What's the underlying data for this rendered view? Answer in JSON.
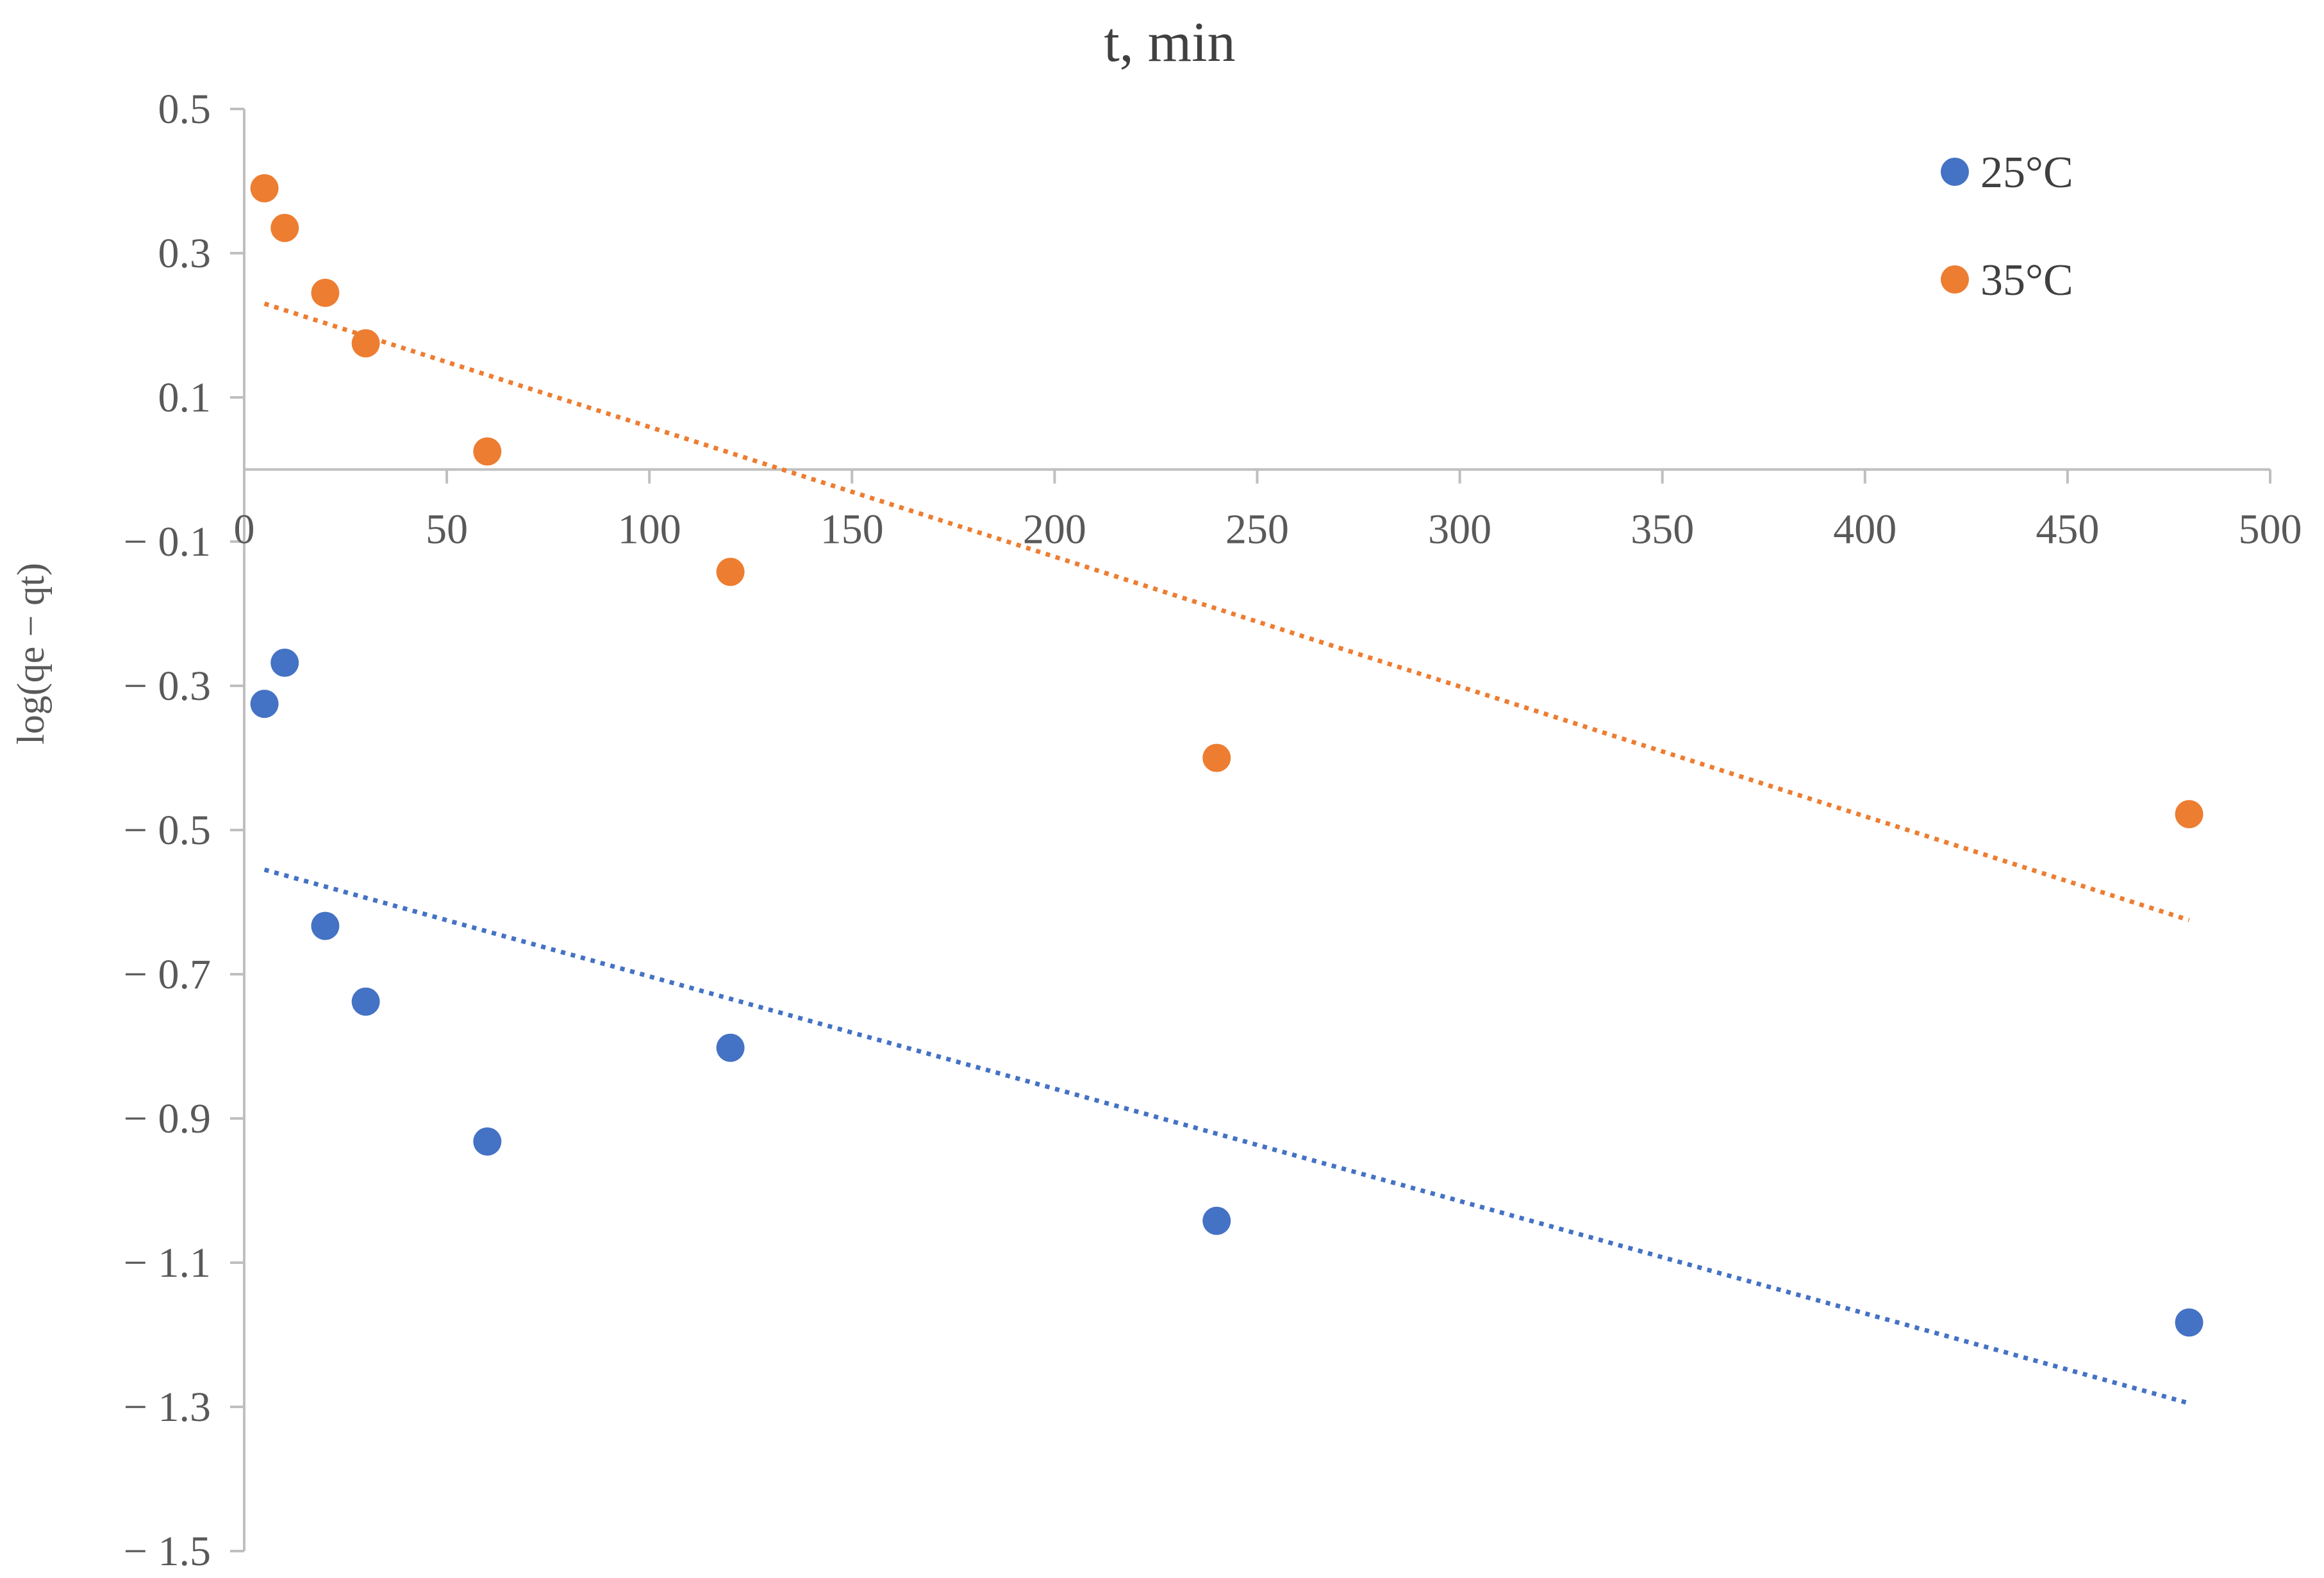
{
  "chart_data": {
    "type": "scatter",
    "title": "t, min",
    "xlabel": "",
    "ylabel": "log(qe − qt)",
    "xlim": [
      0,
      500
    ],
    "ylim": [
      -1.5,
      0.5
    ],
    "x_ticks": [
      "0",
      "50",
      "100",
      "150",
      "200",
      "250",
      "300",
      "350",
      "400",
      "450",
      "500"
    ],
    "y_ticks": [
      "0.5",
      "0.3",
      "0.1",
      "− 0.1",
      "− 0.3",
      "− 0.5",
      "− 0.7",
      "− 0.9",
      "− 1.1",
      "− 1.3",
      "− 1.5"
    ],
    "y_tick_values": [
      0.5,
      0.3,
      0.1,
      -0.1,
      -0.3,
      -0.5,
      -0.7,
      -0.9,
      -1.1,
      -1.3,
      -1.5
    ],
    "x_axis_crosses_y_at": 0,
    "grid": false,
    "legend_position": "top-right",
    "series": [
      {
        "name": "25°C",
        "color": "#4472c4",
        "x": [
          5,
          10,
          20,
          30,
          60,
          120,
          240,
          480
        ],
        "y": [
          -0.325,
          -0.268,
          -0.633,
          -0.738,
          -0.932,
          -0.802,
          -1.042,
          -1.183
        ],
        "trendline": {
          "style": "dotted",
          "x": [
            5,
            480
          ],
          "y": [
            -0.555,
            -1.295
          ]
        }
      },
      {
        "name": "35°C",
        "color": "#ed7d31",
        "x": [
          5,
          10,
          20,
          30,
          60,
          120,
          240,
          480
        ],
        "y": [
          0.39,
          0.335,
          0.245,
          0.175,
          0.025,
          -0.142,
          -0.4,
          -0.478
        ],
        "trendline": {
          "style": "dotted",
          "x": [
            5,
            480
          ],
          "y": [
            0.23,
            -0.625
          ]
        }
      }
    ]
  }
}
